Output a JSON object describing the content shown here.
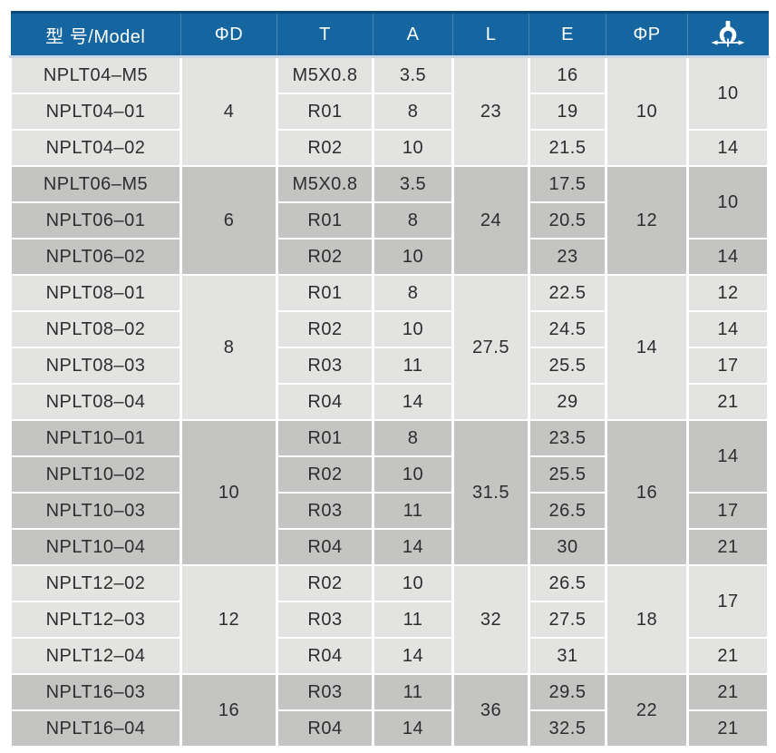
{
  "colors": {
    "header_bg": "#1566a0",
    "header_top_border": "#0d4a7c",
    "header_divider": "#4a83b2",
    "header_text": "#ffffff",
    "row_light": "#e3e3e1",
    "row_dark": "#c4c4c2",
    "grid_line": "#ffffff",
    "header_bottom_line": "#c9d8e7",
    "cell_text": "#2d2d2d"
  },
  "table": {
    "columns": [
      {
        "key": "model",
        "label": "型 号/Model"
      },
      {
        "key": "phiD",
        "label": "ΦD"
      },
      {
        "key": "T",
        "label": "T"
      },
      {
        "key": "A",
        "label": "A"
      },
      {
        "key": "L",
        "label": "L"
      },
      {
        "key": "E",
        "label": "E"
      },
      {
        "key": "phiP",
        "label": "ΦP"
      },
      {
        "key": "wrench",
        "label": "",
        "icon": "wrench-width-icon"
      }
    ],
    "groups": [
      {
        "shade": "light",
        "phiD": "4",
        "L": "23",
        "phiP": "10",
        "rows": [
          {
            "model": "NPLT04–M5",
            "T": "M5X0.8",
            "A": "3.5",
            "E": "16"
          },
          {
            "model": "NPLT04–01",
            "T": "R01",
            "A": "8",
            "E": "19"
          },
          {
            "model": "NPLT04–02",
            "T": "R02",
            "A": "10",
            "E": "21.5"
          }
        ],
        "wrench": [
          {
            "value": "10",
            "span": 2
          },
          {
            "value": "14",
            "span": 1
          }
        ]
      },
      {
        "shade": "dark",
        "phiD": "6",
        "L": "24",
        "phiP": "12",
        "rows": [
          {
            "model": "NPLT06–M5",
            "T": "M5X0.8",
            "A": "3.5",
            "E": "17.5"
          },
          {
            "model": "NPLT06–01",
            "T": "R01",
            "A": "8",
            "E": "20.5"
          },
          {
            "model": "NPLT06–02",
            "T": "R02",
            "A": "10",
            "E": "23"
          }
        ],
        "wrench": [
          {
            "value": "10",
            "span": 2
          },
          {
            "value": "14",
            "span": 1
          }
        ]
      },
      {
        "shade": "light",
        "phiD": "8",
        "L": "27.5",
        "phiP": "14",
        "rows": [
          {
            "model": "NPLT08–01",
            "T": "R01",
            "A": "8",
            "E": "22.5"
          },
          {
            "model": "NPLT08–02",
            "T": "R02",
            "A": "10",
            "E": "24.5"
          },
          {
            "model": "NPLT08–03",
            "T": "R03",
            "A": "11",
            "E": "25.5"
          },
          {
            "model": "NPLT08–04",
            "T": "R04",
            "A": "14",
            "E": "29"
          }
        ],
        "wrench": [
          {
            "value": "12",
            "span": 1
          },
          {
            "value": "14",
            "span": 1
          },
          {
            "value": "17",
            "span": 1
          },
          {
            "value": "21",
            "span": 1
          }
        ]
      },
      {
        "shade": "dark",
        "phiD": "10",
        "L": "31.5",
        "phiP": "16",
        "rows": [
          {
            "model": "NPLT10–01",
            "T": "R01",
            "A": "8",
            "E": "23.5"
          },
          {
            "model": "NPLT10–02",
            "T": "R02",
            "A": "10",
            "E": "25.5"
          },
          {
            "model": "NPLT10–03",
            "T": "R03",
            "A": "11",
            "E": "26.5"
          },
          {
            "model": "NPLT10–04",
            "T": "R04",
            "A": "14",
            "E": "30"
          }
        ],
        "wrench": [
          {
            "value": "14",
            "span": 2
          },
          {
            "value": "17",
            "span": 1
          },
          {
            "value": "21",
            "span": 1
          }
        ]
      },
      {
        "shade": "light",
        "phiD": "12",
        "L": "32",
        "phiP": "18",
        "rows": [
          {
            "model": "NPLT12–02",
            "T": "R02",
            "A": "10",
            "E": "26.5"
          },
          {
            "model": "NPLT12–03",
            "T": "R03",
            "A": "11",
            "E": "27.5"
          },
          {
            "model": "NPLT12–04",
            "T": "R04",
            "A": "14",
            "E": "31"
          }
        ],
        "wrench": [
          {
            "value": "17",
            "span": 2
          },
          {
            "value": "21",
            "span": 1
          }
        ]
      },
      {
        "shade": "dark",
        "phiD": "16",
        "L": "36",
        "phiP": "22",
        "rows": [
          {
            "model": "NPLT16–03",
            "T": "R03",
            "A": "11",
            "E": "29.5"
          },
          {
            "model": "NPLT16–04",
            "T": "R04",
            "A": "14",
            "E": "32.5"
          }
        ],
        "wrench": [
          {
            "value": "21",
            "span": 1
          },
          {
            "value": "21",
            "span": 1
          }
        ]
      }
    ]
  }
}
